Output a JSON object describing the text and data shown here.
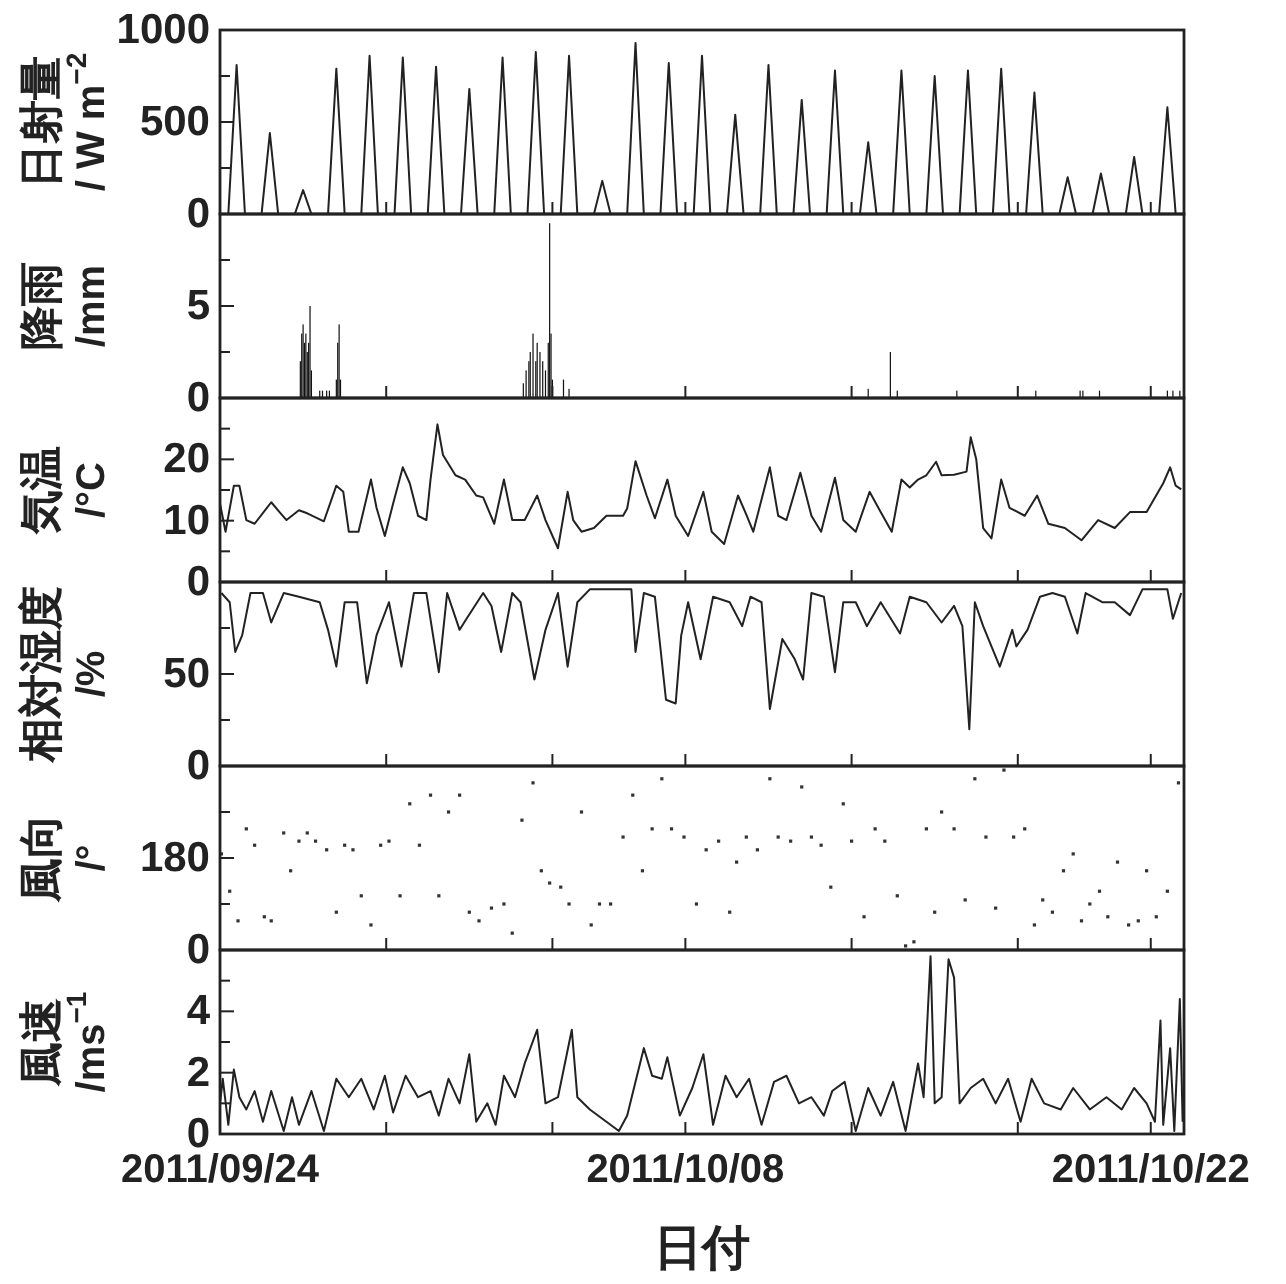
{
  "chart_data": [
    {
      "type": "line",
      "ylabel": "日射量\n/ W m$^{−2}$",
      "color": "#222222",
      "tick_labels": "y",
      "xlim": [
        "2011-09-24",
        "2011-10-23"
      ],
      "xticks": [
        {
          "value": "2011-09-24",
          "label": null
        },
        {
          "value": "2011-09-29",
          "label": null
        },
        {
          "value": "2011-10-04",
          "label": null
        },
        {
          "value": "2011-10-08",
          "label": null
        },
        {
          "value": "2011-10-13",
          "label": null
        },
        {
          "value": "2011-10-18",
          "label": null
        },
        {
          "value": "2011-10-22",
          "label": null
        }
      ],
      "ylim": [
        0,
        1000
      ],
      "yticks": [
        0,
        {
          "value": 250,
          "label": null
        },
        500,
        {
          "value": 750,
          "label": null
        },
        1000
      ],
      "x": [
        "2011-09-24T06:00",
        "2011-09-24T12:00",
        "2011-09-24T18:00",
        "2011-09-25T06:00",
        "2011-09-25T12:00",
        "2011-09-25T18:00",
        "2011-09-26T06:00",
        "2011-09-26T12:00",
        "2011-09-26T18:00",
        "2011-09-27T06:00",
        "2011-09-27T12:00",
        "2011-09-27T18:00",
        "2011-09-28T06:00",
        "2011-09-28T12:00",
        "2011-09-28T18:00",
        "2011-09-29T06:00",
        "2011-09-29T12:00",
        "2011-09-29T18:00",
        "2011-09-30T06:00",
        "2011-09-30T12:00",
        "2011-09-30T18:00",
        "2011-10-01T06:00",
        "2011-10-01T12:00",
        "2011-10-01T18:00",
        "2011-10-02T06:00",
        "2011-10-02T12:00",
        "2011-10-02T18:00",
        "2011-10-03T06:00",
        "2011-10-03T12:00",
        "2011-10-03T18:00",
        "2011-10-04T06:00",
        "2011-10-04T12:00",
        "2011-10-04T18:00",
        "2011-10-05T06:00",
        "2011-10-05T12:00",
        "2011-10-05T18:00",
        "2011-10-06T06:00",
        "2011-10-06T12:00",
        "2011-10-06T18:00",
        "2011-10-07T06:00",
        "2011-10-07T12:00",
        "2011-10-07T18:00",
        "2011-10-08T06:00",
        "2011-10-08T12:00",
        "2011-10-08T18:00",
        "2011-10-09T06:00",
        "2011-10-09T12:00",
        "2011-10-09T18:00",
        "2011-10-10T06:00",
        "2011-10-10T12:00",
        "2011-10-10T18:00",
        "2011-10-11T06:00",
        "2011-10-11T12:00",
        "2011-10-11T18:00",
        "2011-10-12T06:00",
        "2011-10-12T12:00",
        "2011-10-12T18:00",
        "2011-10-13T06:00",
        "2011-10-13T12:00",
        "2011-10-13T18:00",
        "2011-10-14T06:00",
        "2011-10-14T12:00",
        "2011-10-14T18:00",
        "2011-10-15T06:00",
        "2011-10-15T12:00",
        "2011-10-15T18:00",
        "2011-10-16T06:00",
        "2011-10-16T12:00",
        "2011-10-16T18:00",
        "2011-10-17T06:00",
        "2011-10-17T12:00",
        "2011-10-17T18:00",
        "2011-10-18T06:00",
        "2011-10-18T12:00",
        "2011-10-18T18:00",
        "2011-10-19T06:00",
        "2011-10-19T12:00",
        "2011-10-19T18:00",
        "2011-10-20T06:00",
        "2011-10-20T12:00",
        "2011-10-20T18:00",
        "2011-10-21T06:00",
        "2011-10-21T12:00",
        "2011-10-21T18:00",
        "2011-10-22T06:00",
        "2011-10-22T12:00",
        "2011-10-22T18:00"
      ],
      "values": [
        0,
        810,
        0,
        0,
        440,
        0,
        0,
        130,
        0,
        0,
        790,
        0,
        0,
        860,
        0,
        0,
        850,
        0,
        0,
        800,
        0,
        0,
        680,
        0,
        0,
        850,
        0,
        0,
        880,
        0,
        0,
        860,
        0,
        0,
        180,
        0,
        0,
        930,
        0,
        0,
        820,
        0,
        0,
        860,
        0,
        0,
        540,
        0,
        0,
        810,
        0,
        0,
        620,
        0,
        0,
        780,
        0,
        0,
        390,
        0,
        0,
        780,
        0,
        0,
        750,
        0,
        0,
        780,
        0,
        0,
        790,
        0,
        0,
        660,
        0,
        0,
        200,
        0,
        0,
        220,
        0,
        0,
        310,
        0,
        0,
        580,
        0
      ]
    },
    {
      "type": "bar",
      "ylabel": "降雨\n/mm",
      "color": "#111111",
      "tick_labels": "y",
      "xlim": [
        "2011-09-24",
        "2011-10-23"
      ],
      "xticks": [
        {
          "value": "2011-09-24",
          "label": null
        },
        {
          "value": "2011-09-29",
          "label": null
        },
        {
          "value": "2011-10-04",
          "label": null
        },
        {
          "value": "2011-10-08",
          "label": null
        },
        {
          "value": "2011-10-13",
          "label": null
        },
        {
          "value": "2011-10-18",
          "label": null
        },
        {
          "value": "2011-10-22",
          "label": null
        }
      ],
      "ylim": [
        0,
        10
      ],
      "yticks": [
        0,
        {
          "value": 2.5,
          "label": null
        },
        5,
        {
          "value": 7.5,
          "label": null
        }
      ],
      "x": [
        "2011-09-26T10:00",
        "2011-09-26T11:00",
        "2011-09-26T12:00",
        "2011-09-26T13:00",
        "2011-09-26T14:00",
        "2011-09-26T15:00",
        "2011-09-26T16:00",
        "2011-09-26T17:00",
        "2011-09-26T18:00",
        "2011-09-27T00:00",
        "2011-09-27T02:00",
        "2011-09-27T05:00",
        "2011-09-27T07:00",
        "2011-09-27T12:00",
        "2011-09-27T13:00",
        "2011-09-27T14:00",
        "2011-09-27T15:00",
        "2011-10-03T03:00",
        "2011-10-03T05:00",
        "2011-10-03T07:00",
        "2011-10-03T08:00",
        "2011-10-03T10:00",
        "2011-10-03T12:00",
        "2011-10-03T13:00",
        "2011-10-03T15:00",
        "2011-10-03T17:00",
        "2011-10-03T19:00",
        "2011-10-03T21:00",
        "2011-10-03T22:00",
        "2011-10-03T23:00",
        "2011-10-04T00:00",
        "2011-10-04T08:00",
        "2011-10-04T12:00",
        "2011-10-13T12:00",
        "2011-10-14T04:00",
        "2011-10-14T09:00",
        "2011-10-16T04:00",
        "2011-10-18T13:00",
        "2011-10-19T21:00",
        "2011-10-19T23:00",
        "2011-10-20T11:00",
        "2011-10-22T12:00",
        "2011-10-22T16:00",
        "2011-10-22T21:00"
      ],
      "values": [
        2.0,
        3.5,
        4.0,
        3.0,
        3.5,
        2.5,
        3.0,
        5.0,
        1.5,
        0.4,
        0.4,
        0.4,
        0.4,
        1.0,
        3.0,
        4.0,
        1.0,
        0.8,
        1.5,
        2.0,
        2.5,
        3.5,
        2.0,
        3.0,
        2.5,
        2.0,
        1.5,
        3.0,
        9.5,
        3.5,
        1.0,
        1.0,
        0.5,
        0.5,
        2.5,
        0.4,
        0.4,
        0.4,
        0.4,
        0.4,
        0.4,
        0.4,
        0.4,
        0.4
      ]
    },
    {
      "type": "line",
      "ylabel": "気温\n/°C",
      "color": "#222222",
      "tick_labels": "y",
      "xlim": [
        "2011-09-24",
        "2011-10-23"
      ],
      "xticks": [
        {
          "value": "2011-09-24",
          "label": null
        },
        {
          "value": "2011-09-29",
          "label": null
        },
        {
          "value": "2011-10-04",
          "label": null
        },
        {
          "value": "2011-10-08",
          "label": null
        },
        {
          "value": "2011-10-13",
          "label": null
        },
        {
          "value": "2011-10-18",
          "label": null
        },
        {
          "value": "2011-10-22",
          "label": null
        }
      ],
      "ylim": [
        0,
        30
      ],
      "yticks": [
        0,
        {
          "value": 5,
          "label": null
        },
        10,
        {
          "value": 15,
          "label": null
        },
        20,
        {
          "value": 25,
          "label": null
        }
      ],
      "x": [
        "2011-09-24T00:00",
        "2011-09-24T04:00",
        "2011-09-24T10:00",
        "2011-09-24T14:00",
        "2011-09-24T19:00",
        "2011-09-25T01:00",
        "2011-09-25T13:00",
        "2011-09-25T19:00",
        "2011-09-26T00:00",
        "2011-09-26T09:00",
        "2011-09-26T15:00",
        "2011-09-27T03:00",
        "2011-09-27T12:00",
        "2011-09-27T17:00",
        "2011-09-27T21:00",
        "2011-09-28T04:00",
        "2011-09-28T13:00",
        "2011-09-28T17:00",
        "2011-09-28T23:00",
        "2011-09-29T05:00",
        "2011-09-29T12:00",
        "2011-09-29T17:00",
        "2011-09-29T23:00",
        "2011-09-30T05:00",
        "2011-09-30T08:00",
        "2011-09-30T13:00",
        "2011-09-30T17:00",
        "2011-10-01T02:00",
        "2011-10-01T09:00",
        "2011-10-01T17:00",
        "2011-10-01T22:00",
        "2011-10-02T06:00",
        "2011-10-02T13:00",
        "2011-10-02T19:00",
        "2011-10-03T04:00",
        "2011-10-03T13:00",
        "2011-10-03T19:00",
        "2011-10-04T04:00",
        "2011-10-04T11:00",
        "2011-10-04T15:00",
        "2011-10-04T21:00",
        "2011-10-05T06:00",
        "2011-10-05T15:00",
        "2011-10-06T03:00",
        "2011-10-06T06:00",
        "2011-10-06T12:00",
        "2011-10-06T20:00",
        "2011-10-07T02:00",
        "2011-10-07T11:00",
        "2011-10-07T17:00",
        "2011-10-08T02:00",
        "2011-10-08T13:00",
        "2011-10-08T19:00",
        "2011-10-09T04:00",
        "2011-10-09T14:00",
        "2011-10-09T20:00",
        "2011-10-10T01:00",
        "2011-10-10T13:00",
        "2011-10-10T19:00",
        "2011-10-11T01:00",
        "2011-10-11T11:00",
        "2011-10-11T19:00",
        "2011-10-12T02:00",
        "2011-10-12T12:00",
        "2011-10-12T18:00",
        "2011-10-13T03:00",
        "2011-10-13T13:00",
        "2011-10-13T21:00",
        "2011-10-14T05:00",
        "2011-10-14T12:00",
        "2011-10-14T18:00",
        "2011-10-15T00:00",
        "2011-10-15T06:00",
        "2011-10-15T13:00",
        "2011-10-15T17:00",
        "2011-10-16T02:00",
        "2011-10-16T11:00",
        "2011-10-16T14:00",
        "2011-10-16T18:00",
        "2011-10-16T23:00",
        "2011-10-17T05:00",
        "2011-10-17T12:00",
        "2011-10-17T18:00",
        "2011-10-18T05:00",
        "2011-10-18T14:00",
        "2011-10-18T22:00",
        "2011-10-19T10:00",
        "2011-10-19T22:00",
        "2011-10-20T10:00",
        "2011-10-20T22:00",
        "2011-10-21T09:00",
        "2011-10-21T21:00",
        "2011-10-22T09:00",
        "2011-10-22T14:00",
        "2011-10-22T18:00",
        "2011-10-22T22:00"
      ],
      "values": [
        12.8,
        8.2,
        15.7,
        15.7,
        10.1,
        9.5,
        13.0,
        11.4,
        10.1,
        11.7,
        11.2,
        9.9,
        15.7,
        14.7,
        8.2,
        8.2,
        16.7,
        12.1,
        7.5,
        12.8,
        18.7,
        16.1,
        10.8,
        10.1,
        16.7,
        25.7,
        20.7,
        17.4,
        16.7,
        14.1,
        13.8,
        9.5,
        16.7,
        10.1,
        10.1,
        14.1,
        10.1,
        5.5,
        14.7,
        10.1,
        8.2,
        8.8,
        10.8,
        10.8,
        12.0,
        19.7,
        14.1,
        10.4,
        16.7,
        10.8,
        7.5,
        14.7,
        8.2,
        6.2,
        14.1,
        11.0,
        8.2,
        18.7,
        10.8,
        10.1,
        17.8,
        10.8,
        8.2,
        17.0,
        10.1,
        8.2,
        14.7,
        11.4,
        8.2,
        16.7,
        15.4,
        16.7,
        17.4,
        19.6,
        17.4,
        17.5,
        18.0,
        23.6,
        20.0,
        8.8,
        7.1,
        16.7,
        12.1,
        10.8,
        14.1,
        9.5,
        8.8,
        6.8,
        10.1,
        8.8,
        11.4,
        11.4,
        16.1,
        18.7,
        15.7,
        15.1
      ]
    },
    {
      "type": "line",
      "ylabel": "相対湿度\n/%",
      "color": "#222222",
      "tick_labels": "y",
      "xlim": [
        "2011-09-24",
        "2011-10-23"
      ],
      "xticks": [
        {
          "value": "2011-09-24",
          "label": null
        },
        {
          "value": "2011-09-29",
          "label": null
        },
        {
          "value": "2011-10-04",
          "label": null
        },
        {
          "value": "2011-10-08",
          "label": null
        },
        {
          "value": "2011-10-13",
          "label": null
        },
        {
          "value": "2011-10-18",
          "label": null
        },
        {
          "value": "2011-10-22",
          "label": null
        }
      ],
      "ylim": [
        0,
        100
      ],
      "yticks": [
        0,
        {
          "value": 25,
          "label": null
        },
        50,
        {
          "value": 75,
          "label": null
        }
      ],
      "x": [
        "2011-09-24T01:00",
        "2011-09-24T07:00",
        "2011-09-24T11:00",
        "2011-09-24T16:00",
        "2011-09-24T22:00",
        "2011-09-25T07:00",
        "2011-09-25T13:00",
        "2011-09-25T22:00",
        "2011-09-26T09:00",
        "2011-09-27T00:00",
        "2011-09-27T06:00",
        "2011-09-27T12:00",
        "2011-09-27T18:00",
        "2011-09-28T03:00",
        "2011-09-28T10:00",
        "2011-09-28T17:00",
        "2011-09-29T02:00",
        "2011-09-29T11:00",
        "2011-09-29T20:00",
        "2011-09-30T05:00",
        "2011-09-30T14:00",
        "2011-09-30T20:00",
        "2011-10-01T05:00",
        "2011-10-01T10:00",
        "2011-10-01T22:00",
        "2011-10-02T04:00",
        "2011-10-02T11:00",
        "2011-10-02T19:00",
        "2011-10-03T01:00",
        "2011-10-03T11:00",
        "2011-10-03T19:00",
        "2011-10-04T04:00",
        "2011-10-04T11:00",
        "2011-10-04T18:00",
        "2011-10-05T03:00",
        "2011-10-06T09:00",
        "2011-10-06T12:00",
        "2011-10-06T18:00",
        "2011-10-07T02:00",
        "2011-10-07T10:00",
        "2011-10-07T17:00",
        "2011-10-07T21:00",
        "2011-10-08T02:00",
        "2011-10-08T11:00",
        "2011-10-08T20:00",
        "2011-10-09T08:00",
        "2011-10-09T17:00",
        "2011-10-09T23:00",
        "2011-10-10T07:00",
        "2011-10-10T13:00",
        "2011-10-10T22:00",
        "2011-10-11T07:00",
        "2011-10-11T13:00",
        "2011-10-11T19:00",
        "2011-10-12T04:00",
        "2011-10-12T12:00",
        "2011-10-12T18:00",
        "2011-10-13T03:00",
        "2011-10-13T11:00",
        "2011-10-13T21:00",
        "2011-10-14T11:00",
        "2011-10-14T18:00",
        "2011-10-15T06:00",
        "2011-10-15T17:00",
        "2011-10-16T02:00",
        "2011-10-16T08:00",
        "2011-10-16T13:00",
        "2011-10-16T17:00",
        "2011-10-16T23:00",
        "2011-10-17T11:00",
        "2011-10-17T20:00",
        "2011-10-17T23:00",
        "2011-10-18T07:00",
        "2011-10-18T16:00",
        "2011-10-19T01:00",
        "2011-10-19T10:00",
        "2011-10-19T19:00",
        "2011-10-20T01:00",
        "2011-10-20T13:00",
        "2011-10-20T22:00",
        "2011-10-21T09:00",
        "2011-10-21T18:00",
        "2011-10-22T12:00",
        "2011-10-22T16:00",
        "2011-10-22T22:00"
      ],
      "values": [
        94,
        89,
        62,
        71,
        94,
        94,
        78,
        94,
        92,
        89,
        74,
        54,
        89,
        89,
        45,
        71,
        89,
        54,
        94,
        94,
        51,
        94,
        74,
        80,
        94,
        87,
        62,
        94,
        89,
        47,
        74,
        94,
        54,
        89,
        96,
        96,
        62,
        94,
        92,
        36,
        34,
        71,
        89,
        58,
        92,
        89,
        76,
        92,
        89,
        31,
        69,
        58,
        47,
        94,
        92,
        51,
        89,
        89,
        76,
        89,
        72,
        92,
        89,
        78,
        87,
        76,
        20,
        89,
        76,
        54,
        74,
        65,
        74,
        92,
        94,
        92,
        72,
        94,
        89,
        89,
        82,
        96,
        96,
        80,
        94
      ]
    },
    {
      "type": "scatter",
      "marker": "square",
      "ylabel": "風向\n/°",
      "color": "#333333",
      "tick_labels": "y",
      "xlim": [
        "2011-09-24",
        "2011-10-23"
      ],
      "xticks": [
        {
          "value": "2011-09-24",
          "label": null
        },
        {
          "value": "2011-09-29",
          "label": null
        },
        {
          "value": "2011-10-04",
          "label": null
        },
        {
          "value": "2011-10-08",
          "label": null
        },
        {
          "value": "2011-10-13",
          "label": null
        },
        {
          "value": "2011-10-18",
          "label": null
        },
        {
          "value": "2011-10-22",
          "label": null
        }
      ],
      "ylim": [
        0,
        360
      ],
      "yticks": [
        0,
        {
          "value": 90,
          "label": null
        },
        180,
        {
          "value": 270,
          "label": null
        }
      ],
      "x": [
        "2011-09-24T01:00",
        "2011-09-24T07:00",
        "2011-09-24T13:00",
        "2011-09-24T19:00",
        "2011-09-25T01:00",
        "2011-09-25T08:00",
        "2011-09-25T13:00",
        "2011-09-25T22:00",
        "2011-09-26T03:00",
        "2011-09-26T09:00",
        "2011-09-26T15:00",
        "2011-09-26T21:00",
        "2011-09-27T05:00",
        "2011-09-27T12:00",
        "2011-09-27T18:00",
        "2011-09-28T00:00",
        "2011-09-28T06:00",
        "2011-09-28T13:00",
        "2011-09-28T20:00",
        "2011-09-29T02:00",
        "2011-09-29T10:00",
        "2011-09-29T17:00",
        "2011-09-30T00:00",
        "2011-09-30T08:00",
        "2011-09-30T14:00",
        "2011-09-30T21:00",
        "2011-10-01T05:00",
        "2011-10-01T12:00",
        "2011-10-01T19:00",
        "2011-10-02T04:00",
        "2011-10-02T13:00",
        "2011-10-02T19:00",
        "2011-10-03T02:00",
        "2011-10-03T10:00",
        "2011-10-03T16:00",
        "2011-10-03T22:00",
        "2011-10-04T06:00",
        "2011-10-04T12:00",
        "2011-10-04T21:00",
        "2011-10-05T04:00",
        "2011-10-05T10:00",
        "2011-10-05T18:00",
        "2011-10-06T03:00",
        "2011-10-06T10:00",
        "2011-10-06T17:00",
        "2011-10-07T00:00",
        "2011-10-07T07:00",
        "2011-10-07T14:00",
        "2011-10-07T23:00",
        "2011-10-08T08:00",
        "2011-10-08T15:00",
        "2011-10-09T00:00",
        "2011-10-09T08:00",
        "2011-10-09T13:00",
        "2011-10-09T20:00",
        "2011-10-10T04:00",
        "2011-10-10T13:00",
        "2011-10-10T19:00",
        "2011-10-11T04:00",
        "2011-10-11T12:00",
        "2011-10-11T19:00",
        "2011-10-12T02:00",
        "2011-10-12T09:00",
        "2011-10-12T18:00",
        "2011-10-13T00:00",
        "2011-10-13T09:00",
        "2011-10-13T17:00",
        "2011-10-14T00:00",
        "2011-10-14T09:00",
        "2011-10-14T15:00",
        "2011-10-14T21:00",
        "2011-10-15T06:00",
        "2011-10-15T12:00",
        "2011-10-15T17:00",
        "2011-10-16T02:00",
        "2011-10-16T10:00",
        "2011-10-16T17:00",
        "2011-10-17T01:00",
        "2011-10-17T08:00",
        "2011-10-17T14:00",
        "2011-10-17T21:00",
        "2011-10-18T05:00",
        "2011-10-18T12:00",
        "2011-10-18T18:00",
        "2011-10-19T01:00",
        "2011-10-19T09:00",
        "2011-10-19T16:00",
        "2011-10-19T22:00",
        "2011-10-20T04:00",
        "2011-10-20T11:00",
        "2011-10-20T17:00",
        "2011-10-21T00:00",
        "2011-10-21T08:00",
        "2011-10-21T15:00",
        "2011-10-21T21:00",
        "2011-10-22T04:00",
        "2011-10-22T12:00",
        "2011-10-22T20:00"
      ],
      "values": [
        188,
        115,
        57,
        237,
        205,
        65,
        57,
        229,
        155,
        213,
        229,
        213,
        196,
        74,
        205,
        196,
        106,
        49,
        205,
        213,
        106,
        286,
        205,
        303,
        106,
        270,
        303,
        74,
        57,
        82,
        90,
        33,
        254,
        327,
        155,
        131,
        123,
        90,
        270,
        49,
        90,
        90,
        221,
        303,
        155,
        237,
        335,
        237,
        221,
        90,
        196,
        213,
        74,
        172,
        221,
        196,
        335,
        221,
        213,
        319,
        221,
        205,
        123,
        286,
        213,
        65,
        237,
        213,
        106,
        8,
        16,
        237,
        74,
        270,
        237,
        98,
        335,
        221,
        82,
        352,
        221,
        237,
        49,
        98,
        74,
        155,
        188,
        57,
        90,
        115,
        65,
        172,
        49,
        57,
        155,
        65,
        115,
        327
      ]
    },
    {
      "type": "line",
      "ylabel": "風速\n/ms$^{−1}$",
      "xlabel": "日付",
      "color": "#222222",
      "xlim": [
        "2011-09-24",
        "2011-10-23"
      ],
      "xticks": [
        {
          "value": "2011-09-24",
          "label": "2011/09/24"
        },
        {
          "value": "2011-09-29",
          "label": null
        },
        {
          "value": "2011-10-04",
          "label": null
        },
        {
          "value": "2011-10-08",
          "label": "2011/10/08"
        },
        {
          "value": "2011-10-13",
          "label": null
        },
        {
          "value": "2011-10-18",
          "label": null
        },
        {
          "value": "2011-10-22",
          "label": "2011/10/22"
        }
      ],
      "ylim": [
        0,
        6
      ],
      "yticks": [
        0,
        {
          "value": 1,
          "label": null
        },
        2,
        {
          "value": 3,
          "label": null
        },
        4,
        {
          "value": 5,
          "label": null
        }
      ],
      "x": [
        "2011-09-24T00:00",
        "2011-09-24T02:00",
        "2011-09-24T06:00",
        "2011-09-24T10:00",
        "2011-09-24T14:00",
        "2011-09-24T19:00",
        "2011-09-25T01:00",
        "2011-09-25T07:00",
        "2011-09-25T13:00",
        "2011-09-25T22:00",
        "2011-09-26T04:00",
        "2011-09-26T09:00",
        "2011-09-26T18:00",
        "2011-09-27T03:00",
        "2011-09-27T12:00",
        "2011-09-27T21:00",
        "2011-09-28T06:00",
        "2011-09-28T15:00",
        "2011-09-28T23:00",
        "2011-09-29T05:00",
        "2011-09-29T14:00",
        "2011-09-29T23:00",
        "2011-09-30T08:00",
        "2011-09-30T14:00",
        "2011-09-30T21:00",
        "2011-10-01T05:00",
        "2011-10-01T12:00",
        "2011-10-01T17:00",
        "2011-10-02T01:00",
        "2011-10-02T07:00",
        "2011-10-02T13:00",
        "2011-10-02T21:00",
        "2011-10-03T04:00",
        "2011-10-03T13:00",
        "2011-10-03T19:00",
        "2011-10-04T04:00",
        "2011-10-04T14:00",
        "2011-10-04T18:00",
        "2011-10-05T03:00",
        "2011-10-05T15:00",
        "2011-10-06T00:00",
        "2011-10-06T06:00",
        "2011-10-06T12:00",
        "2011-10-06T18:00",
        "2011-10-07T00:00",
        "2011-10-07T07:00",
        "2011-10-07T11:00",
        "2011-10-07T20:00",
        "2011-10-08T05:00",
        "2011-10-08T13:00",
        "2011-10-08T20:00",
        "2011-10-09T05:00",
        "2011-10-09T13:00",
        "2011-10-09T22:00",
        "2011-10-10T07:00",
        "2011-10-10T16:00",
        "2011-10-11T01:00",
        "2011-10-11T10:00",
        "2011-10-11T19:00",
        "2011-10-12T04:00",
        "2011-10-12T10:00",
        "2011-10-12T19:00",
        "2011-10-13T03:00",
        "2011-10-13T12:00",
        "2011-10-13T21:00",
        "2011-10-14T06:00",
        "2011-10-14T15:00",
        "2011-10-15T00:00",
        "2011-10-15T04:00",
        "2011-10-15T09:00",
        "2011-10-15T12:00",
        "2011-10-15T17:00",
        "2011-10-15T22:00",
        "2011-10-16T02:00",
        "2011-10-16T06:00",
        "2011-10-16T14:00",
        "2011-10-16T23:00",
        "2011-10-17T08:00",
        "2011-10-17T17:00",
        "2011-10-18T02:00",
        "2011-10-18T10:00",
        "2011-10-18T19:00",
        "2011-10-19T07:00",
        "2011-10-19T16:00",
        "2011-10-20T04:00",
        "2011-10-20T16:00",
        "2011-10-21T03:00",
        "2011-10-21T12:00",
        "2011-10-21T21:00",
        "2011-10-22T03:00",
        "2011-10-22T07:00",
        "2011-10-22T09:00",
        "2011-10-22T14:00",
        "2011-10-22T17:00",
        "2011-10-22T21:00",
        "2011-10-22T23:00"
      ],
      "values": [
        1.0,
        1.8,
        0.3,
        2.1,
        1.2,
        0.8,
        1.4,
        0.4,
        1.4,
        0.1,
        1.2,
        0.3,
        1.4,
        0.1,
        1.8,
        1.2,
        1.8,
        0.8,
        1.9,
        0.7,
        1.9,
        1.2,
        1.4,
        0.6,
        1.8,
        1.0,
        2.6,
        0.4,
        1.0,
        0.3,
        1.9,
        1.2,
        2.3,
        3.4,
        1.0,
        1.2,
        3.4,
        1.2,
        0.8,
        0.4,
        0.1,
        0.6,
        1.7,
        2.8,
        1.9,
        1.8,
        2.5,
        0.6,
        1.5,
        2.6,
        0.3,
        1.9,
        1.2,
        1.8,
        0.3,
        1.7,
        1.9,
        1.0,
        1.2,
        0.6,
        1.4,
        1.7,
        0.1,
        1.5,
        0.6,
        1.7,
        0.1,
        2.3,
        1.2,
        5.8,
        1.0,
        1.2,
        5.7,
        5.1,
        1.0,
        1.5,
        1.8,
        1.0,
        1.8,
        0.4,
        1.8,
        1.0,
        0.8,
        1.5,
        0.8,
        1.2,
        0.8,
        1.5,
        1.0,
        0.4,
        3.7,
        0.3,
        2.8,
        0.1,
        4.4,
        0.4
      ]
    }
  ]
}
